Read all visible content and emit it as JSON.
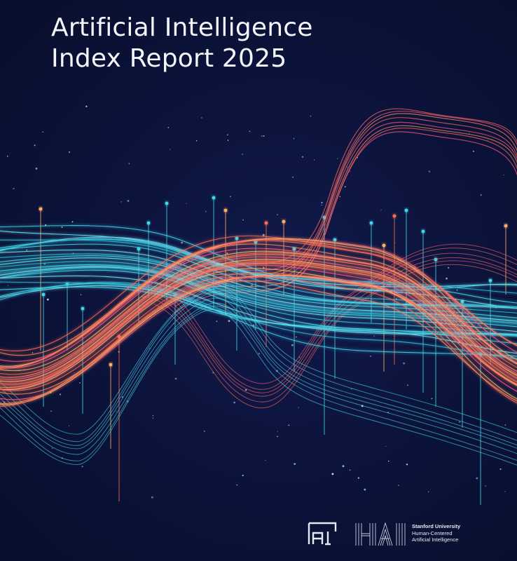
{
  "cover": {
    "title_line1": "Artificial Intelligence",
    "title_line2": "Index Report 2025",
    "colors": {
      "background": "#0b1238",
      "cyan": "#3fd9ec",
      "coral": "#ff6a55",
      "orange": "#ffb066",
      "pink": "#ff5a7a"
    }
  },
  "footer": {
    "ai_index_logo": "AI Index logo",
    "hai_wordmark": "HAI",
    "institution": "Stanford University",
    "unit_line1": "Human-Centered",
    "unit_line2": "Artificial Intelligence"
  }
}
